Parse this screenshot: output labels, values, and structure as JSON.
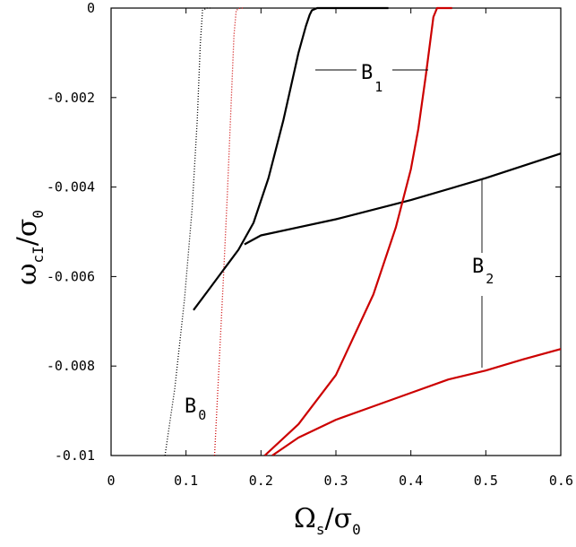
{
  "chart_data": {
    "type": "line",
    "title": "",
    "xlabel": {
      "main": "Ω",
      "sub": "s",
      "slash": "/σ",
      "sub2": "0"
    },
    "ylabel": {
      "main": "ω",
      "sub": "cI",
      "slash": "/σ",
      "sub2": "0"
    },
    "xlim": [
      0,
      0.6
    ],
    "ylim": [
      -0.01,
      0
    ],
    "x_ticks": [
      "0",
      "0.1",
      "0.2",
      "0.3",
      "0.4",
      "0.5",
      "0.6"
    ],
    "x_tick_values": [
      0,
      0.1,
      0.2,
      0.3,
      0.4,
      0.5,
      0.6
    ],
    "y_ticks": [
      "0",
      "-0.002",
      "-0.004",
      "-0.006",
      "-0.008",
      "-0.01"
    ],
    "y_tick_values": [
      0,
      -0.002,
      -0.004,
      -0.006,
      -0.008,
      -0.01
    ],
    "grid": false,
    "series": [
      {
        "color": "#000000",
        "style": "dotted",
        "x": [
          0.072,
          0.085,
          0.098,
          0.108,
          0.115,
          0.119,
          0.122,
          0.128,
          0.135
        ],
        "y": [
          -0.01,
          -0.0085,
          -0.0065,
          -0.0045,
          -0.0025,
          -0.0008,
          -5e-05,
          0,
          0
        ]
      },
      {
        "color": "#cc0000",
        "style": "dotted",
        "x": [
          0.138,
          0.144,
          0.15,
          0.155,
          0.16,
          0.164,
          0.167,
          0.172,
          0.178
        ],
        "y": [
          -0.01,
          -0.008,
          -0.006,
          -0.0042,
          -0.0022,
          -0.0006,
          -5e-05,
          0,
          0
        ]
      },
      {
        "color": "#000000",
        "style": "solid",
        "x": [
          0.11,
          0.13,
          0.15,
          0.17,
          0.19,
          0.21,
          0.23,
          0.25,
          0.26,
          0.265,
          0.268,
          0.275,
          0.3,
          0.33,
          0.35,
          0.37
        ],
        "y": [
          -0.00675,
          -0.0063,
          -0.00585,
          -0.0054,
          -0.0048,
          -0.0038,
          -0.0025,
          -0.001,
          -0.0004,
          -0.00015,
          -5e-05,
          0,
          0,
          0,
          0,
          0
        ]
      },
      {
        "color": "#000000",
        "style": "solid",
        "x": [
          0.178,
          0.2,
          0.3,
          0.4,
          0.5,
          0.6
        ],
        "y": [
          -0.00528,
          -0.00508,
          -0.00472,
          -0.00429,
          -0.0038,
          -0.00325
        ]
      },
      {
        "color": "#cc0000",
        "style": "solid",
        "x": [
          0.205,
          0.25,
          0.3,
          0.35,
          0.38,
          0.4,
          0.41,
          0.42,
          0.43,
          0.435,
          0.44,
          0.445,
          0.45,
          0.455
        ],
        "y": [
          -0.01,
          -0.0093,
          -0.0082,
          -0.0064,
          -0.0049,
          -0.0036,
          -0.0027,
          -0.0015,
          -0.0002,
          0,
          0,
          0,
          0,
          0
        ]
      },
      {
        "color": "#cc0000",
        "style": "solid",
        "x": [
          0.215,
          0.25,
          0.3,
          0.35,
          0.4,
          0.45,
          0.5,
          0.55,
          0.6
        ],
        "y": [
          -0.01,
          -0.0096,
          -0.0092,
          -0.0089,
          -0.0086,
          -0.0083,
          -0.0081,
          -0.00785,
          -0.00762
        ]
      }
    ],
    "annotations": [
      {
        "main": "B",
        "sub": "0"
      },
      {
        "main": "B",
        "sub": "1"
      },
      {
        "main": "B",
        "sub": "2"
      }
    ]
  }
}
